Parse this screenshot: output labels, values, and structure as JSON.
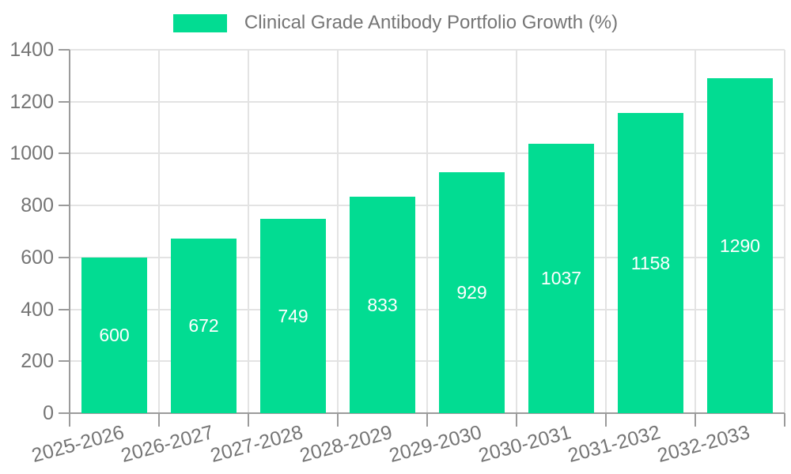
{
  "chart_data": {
    "type": "bar",
    "title": "Clinical Grade Antibody Portfolio Growth (%)",
    "series_name": "Clinical Grade Antibody Portfolio Growth (%)",
    "categories": [
      "2025-2026",
      "2026-2027",
      "2027-2028",
      "2028-2029",
      "2029-2030",
      "2030-2031",
      "2031-2032",
      "2032-2033"
    ],
    "values": [
      600,
      672,
      749,
      833,
      929,
      1037,
      1158,
      1290
    ],
    "ytick_labels": [
      "0",
      "200",
      "400",
      "600",
      "800",
      "1000",
      "1200",
      "1400"
    ],
    "ylim": [
      0,
      1400
    ],
    "ytick_step": 200,
    "xlabel": "",
    "ylabel": "",
    "grid": true,
    "legend_position": "top-center",
    "colors": {
      "bar": "#02DC92",
      "value_label": "#FFFFFF",
      "grid": "#E3E3E3",
      "axis": "#9B9B9B",
      "text": "#757575"
    }
  }
}
